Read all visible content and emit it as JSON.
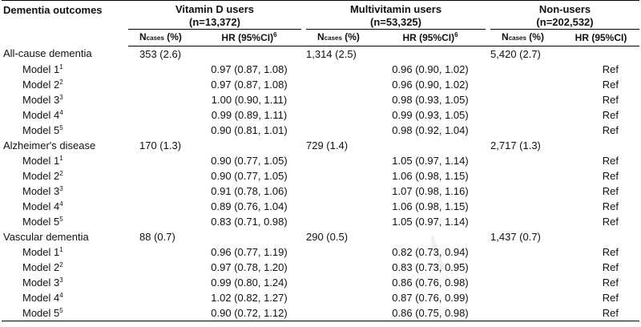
{
  "header": {
    "outcome_label": "Dementia outcomes",
    "groups": [
      {
        "name": "Vitamin D users",
        "n": "(n=13,372)"
      },
      {
        "name": "Multivitamin users",
        "n": "(n=53,325)"
      },
      {
        "name": "Non-users",
        "n": "(n=202,532)"
      }
    ],
    "ncases_main": "N",
    "ncases_sub": "cases",
    "ncases_tail": " (%)",
    "hr_label": "HR (95%CI)",
    "hr_sup": "6"
  },
  "sections": [
    {
      "name": "All-cause dementia",
      "cases": [
        "353 (2.6)",
        "1,314 (2.5)",
        "5,420 (2.7)"
      ],
      "models": [
        {
          "label": "Model 1",
          "sup": "1",
          "vitd": "0.97 (0.87, 1.08)",
          "multi": "0.96 (0.90, 1.02)",
          "non": "Ref"
        },
        {
          "label": "Model 2",
          "sup": "2",
          "vitd": "0.97 (0.87, 1.08)",
          "multi": "0.96 (0.90, 1.02)",
          "non": "Ref"
        },
        {
          "label": "Model 3",
          "sup": "3",
          "vitd": "1.00 (0.90, 1.11)",
          "multi": "0.98 (0.93, 1.05)",
          "non": "Ref"
        },
        {
          "label": "Model 4",
          "sup": "4",
          "vitd": "0.99 (0.89, 1.11)",
          "multi": "0.99 (0.93, 1.05)",
          "non": "Ref"
        },
        {
          "label": "Model 5",
          "sup": "5",
          "vitd": "0.90 (0.81, 1.01)",
          "multi": "0.98 (0.92, 1.04)",
          "non": "Ref"
        }
      ]
    },
    {
      "name": "Alzheimer's disease",
      "cases": [
        "170 (1.3)",
        "729 (1.4)",
        "2,717 (1.3)"
      ],
      "models": [
        {
          "label": "Model 1",
          "sup": "1",
          "vitd": "0.90 (0.77, 1.05)",
          "multi": "1.05 (0.97, 1.14)",
          "non": "Ref"
        },
        {
          "label": "Model 2",
          "sup": "2",
          "vitd": "0.90 (0.77, 1.05)",
          "multi": "1.06 (0.98, 1.15)",
          "non": "Ref"
        },
        {
          "label": "Model 3",
          "sup": "3",
          "vitd": "0.91 (0.78, 1.06)",
          "multi": "1.07 (0.98, 1.16)",
          "non": "Ref"
        },
        {
          "label": "Model 4",
          "sup": "4",
          "vitd": "0.89 (0.76, 1.04)",
          "multi": "1.06 (0.98, 1.15)",
          "non": "Ref"
        },
        {
          "label": "Model 5",
          "sup": "5",
          "vitd": "0.83 (0.71, 0.98)",
          "multi": "1.05 (0.97, 1.14)",
          "non": "Ref"
        }
      ]
    },
    {
      "name": "Vascular dementia",
      "cases": [
        "88 (0.7)",
        "290 (0.5)",
        "1,437 (0.7)"
      ],
      "models": [
        {
          "label": "Model 1",
          "sup": "1",
          "vitd": "0.96 (0.77, 1.19)",
          "multi": "0.82 (0.73, 0.94)",
          "non": "Ref"
        },
        {
          "label": "Model 2",
          "sup": "2",
          "vitd": "0.97 (0.78, 1.20)",
          "multi": "0.83 (0.73, 0.95)",
          "non": "Ref"
        },
        {
          "label": "Model 3",
          "sup": "3",
          "vitd": "0.99 (0.80, 1.24)",
          "multi": "0.86 (0.76, 0.98)",
          "non": "Ref"
        },
        {
          "label": "Model 4",
          "sup": "4",
          "vitd": "1.02 (0.82, 1.27)",
          "multi": "0.87 (0.76, 0.99)",
          "non": "Ref"
        },
        {
          "label": "Model 5",
          "sup": "5",
          "vitd": "0.90 (0.72, 1.12)",
          "multi": "0.86 (0.75, 0.98)",
          "non": "Ref"
        }
      ]
    }
  ]
}
